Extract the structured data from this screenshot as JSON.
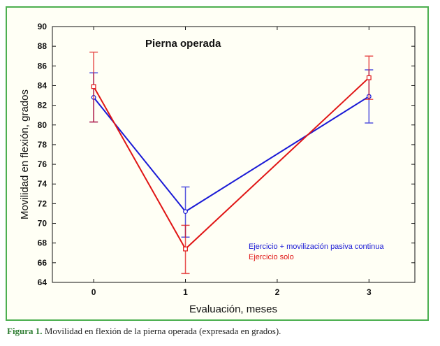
{
  "chart_data": {
    "type": "line",
    "title": "Pierna operada",
    "xlabel": "Evaluación, meses",
    "ylabel": "Movilidad en flexión, grados",
    "x_ticks": [
      "0",
      "1",
      "2",
      "3"
    ],
    "y_ticks": [
      "64",
      "66",
      "68",
      "70",
      "72",
      "74",
      "76",
      "78",
      "80",
      "82",
      "84",
      "86",
      "88",
      "90"
    ],
    "xlim": [
      -0.45,
      3.5
    ],
    "ylim": [
      64,
      90
    ],
    "grid": false,
    "legend_position": "bottom-right",
    "series": [
      {
        "name": "Ejercicio + movilización pasiva continua",
        "color": "#1a1ad6",
        "marker": "circle",
        "x": [
          0,
          1,
          3
        ],
        "y": [
          82.8,
          71.2,
          82.9
        ],
        "err_low": [
          80.3,
          68.6,
          80.2
        ],
        "err_high": [
          85.3,
          73.7,
          85.6
        ]
      },
      {
        "name": "Ejercicio solo",
        "color": "#e01515",
        "marker": "square",
        "x": [
          0,
          1,
          3
        ],
        "y": [
          83.9,
          67.4,
          84.8
        ],
        "err_low": [
          80.3,
          64.9,
          82.6
        ],
        "err_high": [
          87.4,
          69.8,
          87.0
        ]
      }
    ]
  },
  "caption": {
    "lead": "Figura 1.",
    "text": " Movilidad en flexión de la pierna operada (expresada en grados)."
  },
  "colors": {
    "frame_border": "#4caf50",
    "background": "#fffff5"
  }
}
